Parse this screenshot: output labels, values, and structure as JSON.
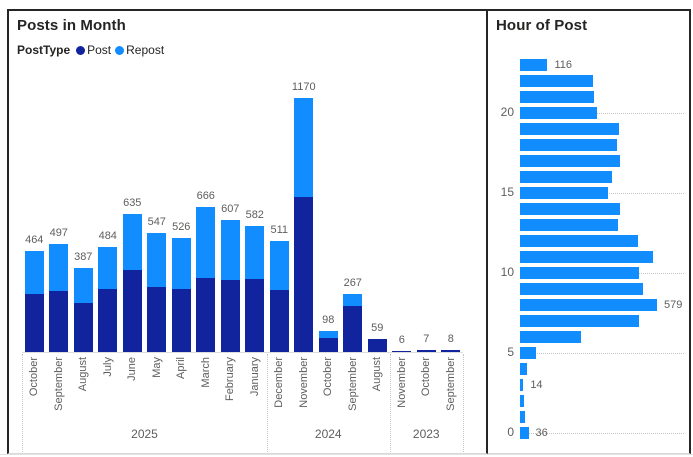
{
  "chart_data": [
    {
      "type": "bar",
      "stacked": true,
      "title": "Posts in Month",
      "legend_title": "PostType",
      "legend_position": "top",
      "series": [
        {
          "name": "Post",
          "color": "#12239E"
        },
        {
          "name": "Repost",
          "color": "#118DFF"
        }
      ],
      "xlabel": "",
      "ylabel": "",
      "bars": [
        {
          "month": "October",
          "year": "2025",
          "post": 265,
          "repost": 199,
          "total": 464
        },
        {
          "month": "September",
          "year": "2025",
          "post": 280,
          "repost": 217,
          "total": 497
        },
        {
          "month": "August",
          "year": "2025",
          "post": 227,
          "repost": 160,
          "total": 387
        },
        {
          "month": "July",
          "year": "2025",
          "post": 289,
          "repost": 195,
          "total": 484
        },
        {
          "month": "June",
          "year": "2025",
          "post": 377,
          "repost": 258,
          "total": 635
        },
        {
          "month": "May",
          "year": "2025",
          "post": 300,
          "repost": 247,
          "total": 547
        },
        {
          "month": "April",
          "year": "2025",
          "post": 289,
          "repost": 237,
          "total": 526
        },
        {
          "month": "March",
          "year": "2025",
          "post": 343,
          "repost": 323,
          "total": 666
        },
        {
          "month": "February",
          "year": "2025",
          "post": 331,
          "repost": 276,
          "total": 607
        },
        {
          "month": "January",
          "year": "2025",
          "post": 335,
          "repost": 247,
          "total": 582
        },
        {
          "month": "December",
          "year": "2024",
          "post": 286,
          "repost": 225,
          "total": 511
        },
        {
          "month": "November",
          "year": "2024",
          "post": 713,
          "repost": 457,
          "total": 1170
        },
        {
          "month": "October",
          "year": "2024",
          "post": 66,
          "repost": 32,
          "total": 98
        },
        {
          "month": "September",
          "year": "2024",
          "post": 212,
          "repost": 55,
          "total": 267
        },
        {
          "month": "August",
          "year": "2024",
          "post": 59,
          "repost": 0,
          "total": 59
        },
        {
          "month": "November",
          "year": "2023",
          "post": 6,
          "repost": 0,
          "total": 6
        },
        {
          "month": "October",
          "year": "2023",
          "post": 7,
          "repost": 0,
          "total": 7
        },
        {
          "month": "September",
          "year": "2023",
          "post": 8,
          "repost": 0,
          "total": 8
        }
      ],
      "year_groups": [
        {
          "label": "2025",
          "count": 10
        },
        {
          "label": "2024",
          "count": 5
        },
        {
          "label": "2023",
          "count": 3
        }
      ]
    },
    {
      "type": "bar-horizontal",
      "title": "Hour of Post",
      "color": "#118DFF",
      "xlabel": "",
      "ylabel": "",
      "axis_ticks": [
        20,
        15,
        10,
        5,
        0
      ],
      "bars": [
        {
          "hour": 23,
          "value": 116,
          "show_label": true
        },
        {
          "hour": 22,
          "value": 310,
          "show_label": false
        },
        {
          "hour": 21,
          "value": 312,
          "show_label": false
        },
        {
          "hour": 20,
          "value": 325,
          "show_label": false
        },
        {
          "hour": 19,
          "value": 420,
          "show_label": false
        },
        {
          "hour": 18,
          "value": 410,
          "show_label": false
        },
        {
          "hour": 17,
          "value": 424,
          "show_label": false
        },
        {
          "hour": 16,
          "value": 389,
          "show_label": false
        },
        {
          "hour": 15,
          "value": 374,
          "show_label": false
        },
        {
          "hour": 14,
          "value": 424,
          "show_label": false
        },
        {
          "hour": 13,
          "value": 413,
          "show_label": false
        },
        {
          "hour": 12,
          "value": 500,
          "show_label": false
        },
        {
          "hour": 11,
          "value": 563,
          "show_label": false
        },
        {
          "hour": 10,
          "value": 504,
          "show_label": false
        },
        {
          "hour": 9,
          "value": 521,
          "show_label": false
        },
        {
          "hour": 8,
          "value": 579,
          "show_label": true
        },
        {
          "hour": 7,
          "value": 503,
          "show_label": false
        },
        {
          "hour": 6,
          "value": 257,
          "show_label": false
        },
        {
          "hour": 5,
          "value": 68,
          "show_label": false
        },
        {
          "hour": 4,
          "value": 28,
          "show_label": false
        },
        {
          "hour": 3,
          "value": 14,
          "show_label": true
        },
        {
          "hour": 2,
          "value": 18,
          "show_label": false
        },
        {
          "hour": 1,
          "value": 20,
          "show_label": false
        },
        {
          "hour": 0,
          "value": 36,
          "show_label": true
        }
      ]
    }
  ]
}
